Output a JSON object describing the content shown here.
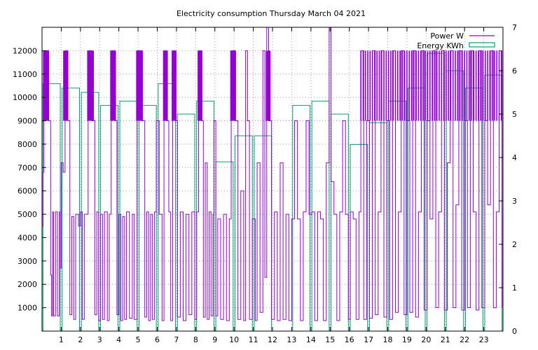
{
  "chart_data": {
    "type": "line",
    "title": "Electricity consumption Thursday March 04 2021",
    "x": {
      "range": [
        0,
        24
      ],
      "ticks": [
        1,
        2,
        3,
        4,
        5,
        6,
        7,
        8,
        9,
        10,
        11,
        12,
        13,
        14,
        15,
        16,
        17,
        18,
        19,
        20,
        21,
        22,
        23
      ],
      "tick_labels": [
        "1",
        "2",
        "3",
        "4",
        "5",
        "6",
        "7",
        "8",
        "9",
        "10",
        "11",
        "12",
        "13",
        "14",
        "15",
        "16",
        "17",
        "18",
        "19",
        "20",
        "21",
        "22",
        "23"
      ]
    },
    "y_left": {
      "range": [
        0,
        13000
      ],
      "ticks": [
        1000,
        2000,
        3000,
        4000,
        5000,
        6000,
        7000,
        8000,
        9000,
        10000,
        11000,
        12000
      ],
      "tick_labels": [
        "1000",
        "2000",
        "3000",
        "4000",
        "5000",
        "6000",
        "7000",
        "8000",
        "9000",
        "10000",
        "11000",
        "12000"
      ]
    },
    "y_right": {
      "range": [
        0,
        7
      ],
      "ticks": [
        0,
        1,
        2,
        3,
        4,
        5,
        6,
        7
      ],
      "tick_labels": [
        "0",
        "1",
        "2",
        "3",
        "4",
        "5",
        "6",
        "7"
      ]
    },
    "grid": true,
    "legend_position": "top-right",
    "series": [
      {
        "name": "Power W",
        "axis": "left",
        "color": "#9400d3",
        "dense_bands": [
          [
            0.05,
            0.35
          ],
          [
            1.1,
            1.35
          ],
          [
            2.35,
            2.7
          ],
          [
            3.55,
            3.85
          ],
          [
            4.9,
            5.25
          ],
          [
            6.3,
            6.55
          ],
          [
            6.75,
            7.0
          ],
          [
            8.1,
            8.35
          ],
          [
            9.8,
            10.1
          ],
          [
            11.65,
            11.9
          ],
          [
            16.6,
            24.0
          ]
        ],
        "band_range": [
          9000,
          12000
        ],
        "samples": [
          [
            0.0,
            4500
          ],
          [
            0.05,
            6800
          ],
          [
            0.1,
            9000
          ],
          [
            0.2,
            12000
          ],
          [
            0.35,
            9000
          ],
          [
            0.45,
            2400
          ],
          [
            0.5,
            650
          ],
          [
            0.55,
            5100
          ],
          [
            0.6,
            650
          ],
          [
            0.7,
            5100
          ],
          [
            0.8,
            650
          ],
          [
            0.9,
            5100
          ],
          [
            0.95,
            2700
          ],
          [
            1.0,
            7200
          ],
          [
            1.1,
            6800
          ],
          [
            1.2,
            12000
          ],
          [
            1.35,
            9000
          ],
          [
            1.45,
            700
          ],
          [
            1.55,
            4900
          ],
          [
            1.65,
            500
          ],
          [
            1.75,
            5000
          ],
          [
            1.9,
            4500
          ],
          [
            2.0,
            5100
          ],
          [
            2.1,
            500
          ],
          [
            2.2,
            5000
          ],
          [
            2.4,
            12000
          ],
          [
            2.6,
            9000
          ],
          [
            2.75,
            700
          ],
          [
            2.85,
            5100
          ],
          [
            2.95,
            450
          ],
          [
            3.05,
            5000
          ],
          [
            3.15,
            500
          ],
          [
            3.25,
            5100
          ],
          [
            3.4,
            450
          ],
          [
            3.5,
            5000
          ],
          [
            3.6,
            12000
          ],
          [
            3.8,
            9000
          ],
          [
            3.9,
            700
          ],
          [
            4.0,
            5000
          ],
          [
            4.1,
            450
          ],
          [
            4.2,
            4900
          ],
          [
            4.3,
            500
          ],
          [
            4.4,
            5100
          ],
          [
            4.55,
            550
          ],
          [
            4.7,
            5000
          ],
          [
            4.8,
            500
          ],
          [
            4.95,
            12000
          ],
          [
            5.2,
            9000
          ],
          [
            5.35,
            600
          ],
          [
            5.45,
            5100
          ],
          [
            5.55,
            450
          ],
          [
            5.65,
            5000
          ],
          [
            5.75,
            500
          ],
          [
            5.85,
            5100
          ],
          [
            5.95,
            9000
          ],
          [
            6.1,
            5000
          ],
          [
            6.25,
            450
          ],
          [
            6.35,
            12000
          ],
          [
            6.5,
            9000
          ],
          [
            6.6,
            5100
          ],
          [
            6.7,
            450
          ],
          [
            6.8,
            12000
          ],
          [
            6.95,
            9000
          ],
          [
            7.05,
            600
          ],
          [
            7.2,
            5100
          ],
          [
            7.35,
            450
          ],
          [
            7.5,
            5000
          ],
          [
            7.65,
            700
          ],
          [
            7.8,
            5100
          ],
          [
            7.95,
            500
          ],
          [
            8.05,
            5100
          ],
          [
            8.15,
            12000
          ],
          [
            8.3,
            9000
          ],
          [
            8.4,
            600
          ],
          [
            8.5,
            7200
          ],
          [
            8.6,
            500
          ],
          [
            8.7,
            5100
          ],
          [
            8.8,
            650
          ],
          [
            8.9,
            5000
          ],
          [
            8.95,
            9000
          ],
          [
            9.05,
            650
          ],
          [
            9.15,
            4800
          ],
          [
            9.3,
            500
          ],
          [
            9.45,
            5000
          ],
          [
            9.6,
            450
          ],
          [
            9.75,
            4800
          ],
          [
            9.85,
            12000
          ],
          [
            10.05,
            9000
          ],
          [
            10.2,
            500
          ],
          [
            10.35,
            6000
          ],
          [
            10.5,
            450
          ],
          [
            10.6,
            12000
          ],
          [
            10.7,
            9000
          ],
          [
            10.8,
            500
          ],
          [
            10.95,
            4800
          ],
          [
            11.1,
            450
          ],
          [
            11.2,
            7200
          ],
          [
            11.35,
            800
          ],
          [
            11.5,
            12000
          ],
          [
            11.6,
            2300
          ],
          [
            11.7,
            13000
          ],
          [
            11.8,
            9000
          ],
          [
            11.95,
            500
          ],
          [
            12.1,
            5100
          ],
          [
            12.25,
            450
          ],
          [
            12.4,
            7200
          ],
          [
            12.55,
            500
          ],
          [
            12.7,
            5000
          ],
          [
            12.85,
            450
          ],
          [
            13.0,
            4800
          ],
          [
            13.15,
            9000
          ],
          [
            13.3,
            4800
          ],
          [
            13.45,
            450
          ],
          [
            13.6,
            5100
          ],
          [
            13.75,
            9000
          ],
          [
            13.9,
            5000
          ],
          [
            14.05,
            5100
          ],
          [
            14.2,
            450
          ],
          [
            14.35,
            5100
          ],
          [
            14.5,
            4800
          ],
          [
            14.65,
            450
          ],
          [
            14.8,
            7200
          ],
          [
            14.95,
            13000
          ],
          [
            15.05,
            6400
          ],
          [
            15.2,
            5000
          ],
          [
            15.35,
            450
          ],
          [
            15.5,
            5100
          ],
          [
            15.65,
            9000
          ],
          [
            15.8,
            5000
          ],
          [
            15.95,
            500
          ],
          [
            16.05,
            5100
          ],
          [
            16.2,
            4800
          ],
          [
            16.35,
            500
          ],
          [
            16.5,
            5100
          ],
          [
            16.6,
            12000
          ],
          [
            16.75,
            500
          ],
          [
            16.9,
            9000
          ],
          [
            17.05,
            550
          ],
          [
            17.2,
            12000
          ],
          [
            17.35,
            700
          ],
          [
            17.5,
            5100
          ],
          [
            17.65,
            12000
          ],
          [
            17.8,
            600
          ],
          [
            17.95,
            9000
          ],
          [
            18.1,
            500
          ],
          [
            18.25,
            12000
          ],
          [
            18.4,
            800
          ],
          [
            18.55,
            5100
          ],
          [
            18.7,
            12000
          ],
          [
            18.85,
            700
          ],
          [
            19.0,
            9000
          ],
          [
            19.15,
            800
          ],
          [
            19.3,
            12000
          ],
          [
            19.45,
            600
          ],
          [
            19.6,
            5100
          ],
          [
            19.75,
            12000
          ],
          [
            19.9,
            900
          ],
          [
            20.05,
            9000
          ],
          [
            20.2,
            4800
          ],
          [
            20.35,
            12000
          ],
          [
            20.5,
            1000
          ],
          [
            20.65,
            5100
          ],
          [
            20.8,
            12000
          ],
          [
            20.95,
            900
          ],
          [
            21.1,
            7200
          ],
          [
            21.25,
            12000
          ],
          [
            21.4,
            1000
          ],
          [
            21.55,
            5400
          ],
          [
            21.7,
            12000
          ],
          [
            21.85,
            900
          ],
          [
            22.0,
            9000
          ],
          [
            22.15,
            1000
          ],
          [
            22.3,
            12000
          ],
          [
            22.45,
            5100
          ],
          [
            22.6,
            900
          ],
          [
            22.75,
            12000
          ],
          [
            22.9,
            1000
          ],
          [
            23.05,
            9000
          ],
          [
            23.2,
            5400
          ],
          [
            23.35,
            12000
          ],
          [
            23.5,
            1000
          ],
          [
            23.65,
            5100
          ],
          [
            23.8,
            12000
          ],
          [
            23.95,
            1000
          ]
        ]
      },
      {
        "name": "Energy KWh",
        "axis": "right",
        "color": "#009e73",
        "values": [
          5.7,
          5.6,
          5.5,
          5.2,
          5.3,
          5.2,
          5.7,
          5.0,
          5.3,
          3.9,
          4.5,
          4.5,
          0,
          5.2,
          5.3,
          5.0,
          4.3,
          4.8,
          5.3,
          5.6,
          6.4,
          6.0,
          5.6,
          5.9
        ],
        "bar_width": 0.45
      }
    ]
  }
}
